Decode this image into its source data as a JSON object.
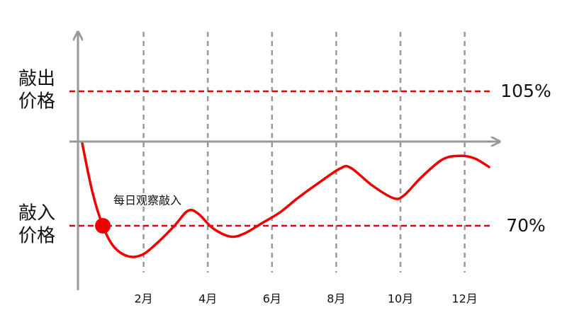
{
  "chart_data": {
    "type": "line",
    "x": [
      0.09,
      0.4,
      0.73,
      1.06,
      1.5,
      1.94,
      2.38,
      2.94,
      3.38,
      3.71,
      4.15,
      4.7,
      5.14,
      5.69,
      6.25,
      6.8,
      7.46,
      8.12,
      8.45,
      9.12,
      9.78,
      10.11,
      10.66,
      11.32,
      11.87,
      12.32,
      12.76
    ],
    "series": [
      {
        "color": "#ee0000",
        "values": [
          91.4,
          79.0,
          70.0,
          64.7,
          62.1,
          62.4,
          65.2,
          69.8,
          73.9,
          73.1,
          69.4,
          67.2,
          68.0,
          70.7,
          73.5,
          77.2,
          81.2,
          84.9,
          85.1,
          80.5,
          77.2,
          77.9,
          82.7,
          87.3,
          88.2,
          87.5,
          85.3
        ]
      }
    ],
    "xlim": [
      0,
      13
    ],
    "ylim": [
      55,
      120
    ],
    "xticks": [
      {
        "value": 2,
        "label": "2月"
      },
      {
        "value": 4,
        "label": "4月"
      },
      {
        "value": 6,
        "label": "6月"
      },
      {
        "value": 8,
        "label": "8月"
      },
      {
        "value": 10,
        "label": "10月"
      },
      {
        "value": 12,
        "label": "12月"
      }
    ],
    "reference_lines": [
      {
        "value": 105,
        "label": "105%",
        "name": [
          "敲出",
          "价格"
        ],
        "color": "#dd0000"
      },
      {
        "value": 70,
        "label": "70%",
        "name": [
          "敲入",
          "价格"
        ],
        "color": "#dd0000"
      }
    ],
    "marker": {
      "x": 0.73,
      "value": 70,
      "label": "每日观察敲入",
      "color": "#ee0000"
    }
  }
}
